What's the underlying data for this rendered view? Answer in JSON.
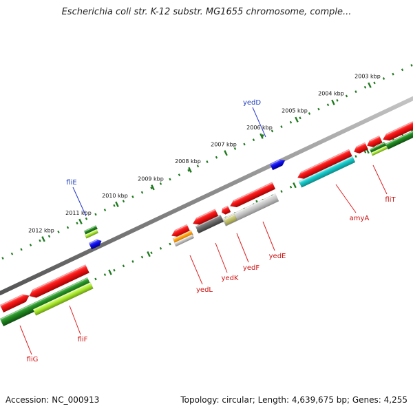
{
  "title": "Escherichia coli str. K-12 substr. MG1655 chromosome, comple...",
  "footer": {
    "accession": "Accession: NC_000913",
    "summary": "Topology: circular; Length: 4,639,675 bp; Genes: 4,255"
  },
  "colors": {
    "background": "#ffffff",
    "backbone": "#888888",
    "tick_marks": "#1f7a1f",
    "gene_label_forward": "#1f3fbf",
    "gene_label_reverse": "#cc1111",
    "label_line_forward": "#2233cc",
    "label_line_reverse": "#dd2222"
  },
  "scale": {
    "labels": [
      "2003 kbp",
      "2004 kbp",
      "2005 kbp",
      "2006 kbp",
      "2007 kbp",
      "2008 kbp",
      "2009 kbp",
      "2010 kbp",
      "2011 kbp",
      "2012 kbp"
    ]
  },
  "genes": [
    {
      "name": "fliE",
      "strand": "forward",
      "label": "fliE"
    },
    {
      "name": "yedD",
      "strand": "forward",
      "label": "yedD"
    },
    {
      "name": "fliG",
      "strand": "reverse",
      "label": "fliG"
    },
    {
      "name": "fliF",
      "strand": "reverse",
      "label": "fliF"
    },
    {
      "name": "yedL",
      "strand": "reverse",
      "label": "yedL"
    },
    {
      "name": "yedK",
      "strand": "reverse",
      "label": "yedK"
    },
    {
      "name": "yedF",
      "strand": "reverse",
      "label": "yedF"
    },
    {
      "name": "yedE",
      "strand": "reverse",
      "label": "yedE"
    },
    {
      "name": "amyA",
      "strand": "reverse",
      "label": "amyA"
    },
    {
      "name": "fliT",
      "strand": "reverse",
      "label": "fliT"
    }
  ]
}
